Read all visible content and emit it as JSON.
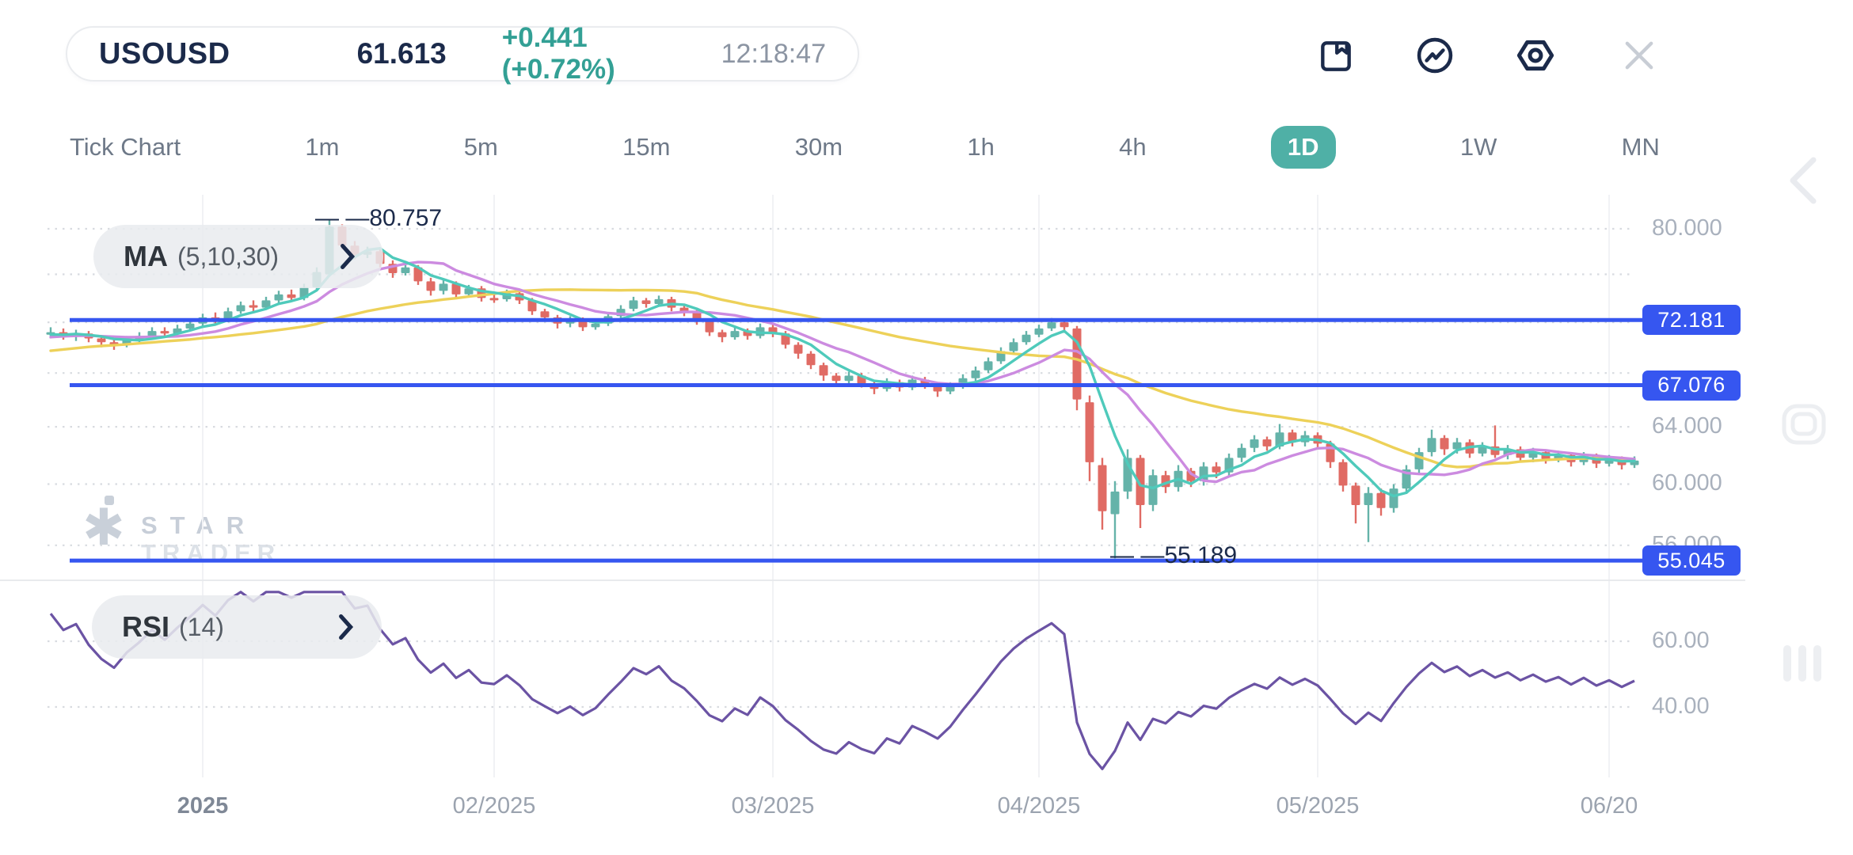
{
  "header": {
    "symbol": "USOUSD",
    "price": "61.613",
    "change": "+0.441 (+0.72%)",
    "time": "12:18:47"
  },
  "toolbar": {
    "bookmark_icon": "bookmark",
    "trend_icon": "trend-circle",
    "settings_icon": "settings-hexagon",
    "close_icon": "close"
  },
  "timeframes": {
    "items": [
      {
        "label": "Tick Chart",
        "active": false
      },
      {
        "label": "1m",
        "active": false
      },
      {
        "label": "5m",
        "active": false
      },
      {
        "label": "15m",
        "active": false
      },
      {
        "label": "30m",
        "active": false
      },
      {
        "label": "1h",
        "active": false
      },
      {
        "label": "4h",
        "active": false
      },
      {
        "label": "1D",
        "active": true
      },
      {
        "label": "1W",
        "active": false
      },
      {
        "label": "MN",
        "active": false
      }
    ]
  },
  "indicators": {
    "ma": {
      "label": "MA",
      "params": "(5,10,30)"
    },
    "rsi": {
      "label": "RSI",
      "params": "(14)"
    }
  },
  "watermark": {
    "line1": "STAR",
    "line2": "TRADER"
  },
  "colors": {
    "navy": "#1B2A4A",
    "teal_accent": "#4FB0A6",
    "change_green": "#33A095",
    "candle_up": "#65B3A9",
    "candle_down": "#E06B64",
    "ma5": "#4FCABB",
    "ma10": "#CC8BE0",
    "ma30": "#EDD159",
    "rsi_line": "#6B53A4",
    "level_blue": "#3656F0",
    "grid_dotted": "#D8DBE0",
    "grid_vertical": "#F1F2F5"
  },
  "chart_data": {
    "type": "candlestick",
    "title": "USOUSD 1D",
    "scale": "log",
    "x_ticks": [
      {
        "label": "2025",
        "index": 12,
        "emphasis": true
      },
      {
        "label": "02/2025",
        "index": 35,
        "emphasis": false
      },
      {
        "label": "03/2025",
        "index": 57,
        "emphasis": false
      },
      {
        "label": "04/2025",
        "index": 78,
        "emphasis": false
      },
      {
        "label": "05/2025",
        "index": 100,
        "emphasis": false
      },
      {
        "label": "06/20",
        "index": 123,
        "emphasis": false
      }
    ],
    "price_axis_ticks": [
      {
        "label": "80.000",
        "value": 80.0
      },
      {
        "label": "64.000",
        "value": 64.0
      },
      {
        "label": "60.000",
        "value": 60.0
      },
      {
        "label": "56.000",
        "value": 56.0
      }
    ],
    "price_badges": [
      {
        "label": "72.181",
        "value": 72.181
      },
      {
        "label": "67.076",
        "value": 67.076
      },
      {
        "label": "55.045",
        "value": 55.045
      }
    ],
    "hlines": [
      72.181,
      67.076,
      55.045
    ],
    "grid_values": [
      80,
      76,
      72,
      68,
      64,
      60,
      56
    ],
    "rsi_grid_values": [
      60,
      40
    ],
    "rsi_axis_ticks": [
      {
        "label": "60.00",
        "value": 60
      },
      {
        "label": "40.00",
        "value": 40
      }
    ],
    "annotations": {
      "high": {
        "label": "— —80.757",
        "value": 80.757,
        "index": 22
      },
      "low": {
        "label": "— —55.189",
        "value": 55.189,
        "index": 84
      }
    },
    "ma_lines": [
      {
        "period": 30,
        "color": "#EDD159"
      },
      {
        "period": 10,
        "color": "#CC8BE0"
      },
      {
        "period": 5,
        "color": "#4FCABB"
      }
    ],
    "rsi_period": 14,
    "history": [
      67.6,
      67.8,
      68.0,
      67.7,
      68.2,
      68.5,
      68.3,
      68.8,
      69.0,
      68.7,
      69.2,
      69.5,
      69.3,
      69.8,
      70.0,
      69.7,
      70.2,
      70.0,
      70.4,
      70.1,
      70.5,
      70.3,
      70.7,
      70.5,
      70.9,
      70.6,
      71.0,
      70.8,
      71.1,
      71.0
    ],
    "candles": [
      [
        71.0,
        71.6,
        70.7,
        71.2
      ],
      [
        71.2,
        71.5,
        70.6,
        70.9
      ],
      [
        70.9,
        71.4,
        70.5,
        71.1
      ],
      [
        71.1,
        71.3,
        70.4,
        70.7
      ],
      [
        70.7,
        70.9,
        70.0,
        70.4
      ],
      [
        70.4,
        70.7,
        69.8,
        70.2
      ],
      [
        70.2,
        70.9,
        70.0,
        70.6
      ],
      [
        70.6,
        71.2,
        70.4,
        70.9
      ],
      [
        70.9,
        71.6,
        70.7,
        71.3
      ],
      [
        71.3,
        71.6,
        70.8,
        71.1
      ],
      [
        71.1,
        71.8,
        70.9,
        71.5
      ],
      [
        71.5,
        72.2,
        71.3,
        71.9
      ],
      [
        71.9,
        72.7,
        71.7,
        72.4
      ],
      [
        72.4,
        72.8,
        71.9,
        72.2
      ],
      [
        72.2,
        73.2,
        72.0,
        72.9
      ],
      [
        72.9,
        73.7,
        72.7,
        73.4
      ],
      [
        73.4,
        73.8,
        72.9,
        73.2
      ],
      [
        73.2,
        74.1,
        73.0,
        73.8
      ],
      [
        73.8,
        74.6,
        73.6,
        74.3
      ],
      [
        74.3,
        74.7,
        73.7,
        74.0
      ],
      [
        74.0,
        75.2,
        73.8,
        74.9
      ],
      [
        74.9,
        76.6,
        74.7,
        76.2
      ],
      [
        76.0,
        80.757,
        75.8,
        80.2
      ],
      [
        80.2,
        80.4,
        78.2,
        78.5
      ],
      [
        78.5,
        78.9,
        77.3,
        77.7
      ],
      [
        77.7,
        78.4,
        77.4,
        78.0
      ],
      [
        78.0,
        78.2,
        76.6,
        76.9
      ],
      [
        76.9,
        77.2,
        75.7,
        76.1
      ],
      [
        76.1,
        76.9,
        75.9,
        76.6
      ],
      [
        76.6,
        76.8,
        75.1,
        75.4
      ],
      [
        75.4,
        75.7,
        74.2,
        74.6
      ],
      [
        74.6,
        75.5,
        74.3,
        75.2
      ],
      [
        75.2,
        75.4,
        74.0,
        74.3
      ],
      [
        74.3,
        75.1,
        74.1,
        74.8
      ],
      [
        74.8,
        75.0,
        73.7,
        74.0
      ],
      [
        74.0,
        74.4,
        73.6,
        73.9
      ],
      [
        73.9,
        74.7,
        73.7,
        74.4
      ],
      [
        74.4,
        74.6,
        73.5,
        73.8
      ],
      [
        73.8,
        74.0,
        72.6,
        72.9
      ],
      [
        72.9,
        73.1,
        72.1,
        72.4
      ],
      [
        72.4,
        72.6,
        71.5,
        71.9
      ],
      [
        71.9,
        72.5,
        71.6,
        72.2
      ],
      [
        72.2,
        72.4,
        71.3,
        71.6
      ],
      [
        71.6,
        72.2,
        71.4,
        71.9
      ],
      [
        71.9,
        72.8,
        71.7,
        72.5
      ],
      [
        72.5,
        73.4,
        72.3,
        73.1
      ],
      [
        73.1,
        74.1,
        72.9,
        73.8
      ],
      [
        73.8,
        74.0,
        73.2,
        73.5
      ],
      [
        73.5,
        74.2,
        73.3,
        73.9
      ],
      [
        73.9,
        74.1,
        72.9,
        73.2
      ],
      [
        73.2,
        73.4,
        72.5,
        72.8
      ],
      [
        72.8,
        73.0,
        71.8,
        72.1
      ],
      [
        72.1,
        72.3,
        70.9,
        71.2
      ],
      [
        71.2,
        71.4,
        70.4,
        70.8
      ],
      [
        70.8,
        71.6,
        70.6,
        71.3
      ],
      [
        71.3,
        71.5,
        70.6,
        70.9
      ],
      [
        70.9,
        71.9,
        70.7,
        71.6
      ],
      [
        71.6,
        71.8,
        70.8,
        71.1
      ],
      [
        71.1,
        71.3,
        69.9,
        70.2
      ],
      [
        70.2,
        70.4,
        69.1,
        69.5
      ],
      [
        69.5,
        69.7,
        68.3,
        68.6
      ],
      [
        68.6,
        68.8,
        67.4,
        67.8
      ],
      [
        67.8,
        68.0,
        67.0,
        67.4
      ],
      [
        67.4,
        68.1,
        67.2,
        67.8
      ],
      [
        67.8,
        68.0,
        66.9,
        67.2
      ],
      [
        67.2,
        67.4,
        66.4,
        66.8
      ],
      [
        66.8,
        67.6,
        66.6,
        67.3
      ],
      [
        67.3,
        67.5,
        66.6,
        66.9
      ],
      [
        66.9,
        67.8,
        66.7,
        67.5
      ],
      [
        67.5,
        67.7,
        66.8,
        67.1
      ],
      [
        67.1,
        67.3,
        66.2,
        66.6
      ],
      [
        66.6,
        67.3,
        66.4,
        67.0
      ],
      [
        67.0,
        67.9,
        66.8,
        67.6
      ],
      [
        67.6,
        68.5,
        67.4,
        68.2
      ],
      [
        68.2,
        69.2,
        68.0,
        68.9
      ],
      [
        68.9,
        70.0,
        68.7,
        69.7
      ],
      [
        69.7,
        70.7,
        69.5,
        70.4
      ],
      [
        70.4,
        71.3,
        70.2,
        71.0
      ],
      [
        71.0,
        71.8,
        70.8,
        71.5
      ],
      [
        71.5,
        72.35,
        71.3,
        72.0
      ],
      [
        72.0,
        72.2,
        71.3,
        71.6
      ],
      [
        71.5,
        71.7,
        65.2,
        66.0
      ],
      [
        65.8,
        66.3,
        60.2,
        61.5
      ],
      [
        61.3,
        61.8,
        57.0,
        58.2
      ],
      [
        58.0,
        60.2,
        55.189,
        59.5
      ],
      [
        59.5,
        62.4,
        59.0,
        61.8
      ],
      [
        61.8,
        62.0,
        57.1,
        58.6
      ],
      [
        58.6,
        61.0,
        58.2,
        60.6
      ],
      [
        60.6,
        60.9,
        59.4,
        59.8
      ],
      [
        59.8,
        61.3,
        59.5,
        60.9
      ],
      [
        60.9,
        61.1,
        59.8,
        60.2
      ],
      [
        60.2,
        61.5,
        59.9,
        61.2
      ],
      [
        61.2,
        61.5,
        60.4,
        60.8
      ],
      [
        60.8,
        62.1,
        60.5,
        61.8
      ],
      [
        61.8,
        62.8,
        61.5,
        62.5
      ],
      [
        62.5,
        63.4,
        62.2,
        63.1
      ],
      [
        63.1,
        63.3,
        62.3,
        62.6
      ],
      [
        62.6,
        64.2,
        62.4,
        63.6
      ],
      [
        63.6,
        63.8,
        62.6,
        62.9
      ],
      [
        62.9,
        63.7,
        62.6,
        63.4
      ],
      [
        63.4,
        63.6,
        62.4,
        62.8
      ],
      [
        62.8,
        63.0,
        61.1,
        61.5
      ],
      [
        61.5,
        61.7,
        59.5,
        59.9
      ],
      [
        59.9,
        60.1,
        57.4,
        58.6
      ],
      [
        58.6,
        59.8,
        56.2,
        59.4
      ],
      [
        59.4,
        59.7,
        57.9,
        58.4
      ],
      [
        58.4,
        60.0,
        58.1,
        59.7
      ],
      [
        59.7,
        61.3,
        59.4,
        61.0
      ],
      [
        61.0,
        62.5,
        60.7,
        62.2
      ],
      [
        62.2,
        63.8,
        61.9,
        63.2
      ],
      [
        63.2,
        63.4,
        62.0,
        62.4
      ],
      [
        62.4,
        63.2,
        62.1,
        62.9
      ],
      [
        62.9,
        63.1,
        61.8,
        62.1
      ],
      [
        62.1,
        62.9,
        61.9,
        62.6
      ],
      [
        62.6,
        64.1,
        61.8,
        62.0
      ],
      [
        62.0,
        62.7,
        61.7,
        62.4
      ],
      [
        62.4,
        62.6,
        61.5,
        61.8
      ],
      [
        61.8,
        62.5,
        61.5,
        62.2
      ],
      [
        62.2,
        62.4,
        61.4,
        61.7
      ],
      [
        61.7,
        62.3,
        61.5,
        62.0
      ],
      [
        62.0,
        62.2,
        61.2,
        61.5
      ],
      [
        61.5,
        62.2,
        61.3,
        61.9
      ],
      [
        61.9,
        62.1,
        61.1,
        61.4
      ],
      [
        61.4,
        62.0,
        61.2,
        61.7
      ],
      [
        61.7,
        61.9,
        61.0,
        61.3
      ],
      [
        61.3,
        61.9,
        61.1,
        61.613
      ]
    ]
  }
}
